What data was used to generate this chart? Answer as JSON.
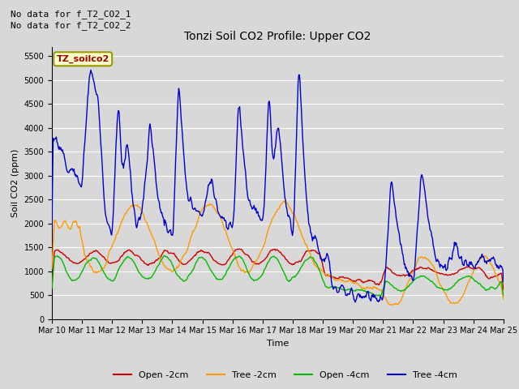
{
  "title": "Tonzi Soil CO2 Profile: Upper CO2",
  "ylabel": "Soil CO2 (ppm)",
  "xlabel": "Time",
  "no_data_text": [
    "No data for f_T2_CO2_1",
    "No data for f_T2_CO2_2"
  ],
  "legend_label": "TZ_soilco2",
  "ylim": [
    0,
    5700
  ],
  "yticks": [
    0,
    500,
    1000,
    1500,
    2000,
    2500,
    3000,
    3500,
    4000,
    4500,
    5000,
    5500
  ],
  "colors": {
    "open_2cm": "#cc0000",
    "tree_2cm": "#ff9900",
    "open_4cm": "#00bb00",
    "tree_4cm": "#0000cc"
  },
  "legend_items": [
    "Open -2cm",
    "Tree -2cm",
    "Open -4cm",
    "Tree -4cm"
  ],
  "bg_color": "#d8d8d8",
  "grid_color": "#ffffff",
  "num_days": 15,
  "points_per_day": 48,
  "title_fontsize": 10,
  "axis_fontsize": 8,
  "tick_fontsize": 7,
  "legend_fontsize": 8,
  "no_data_fontsize": 8
}
